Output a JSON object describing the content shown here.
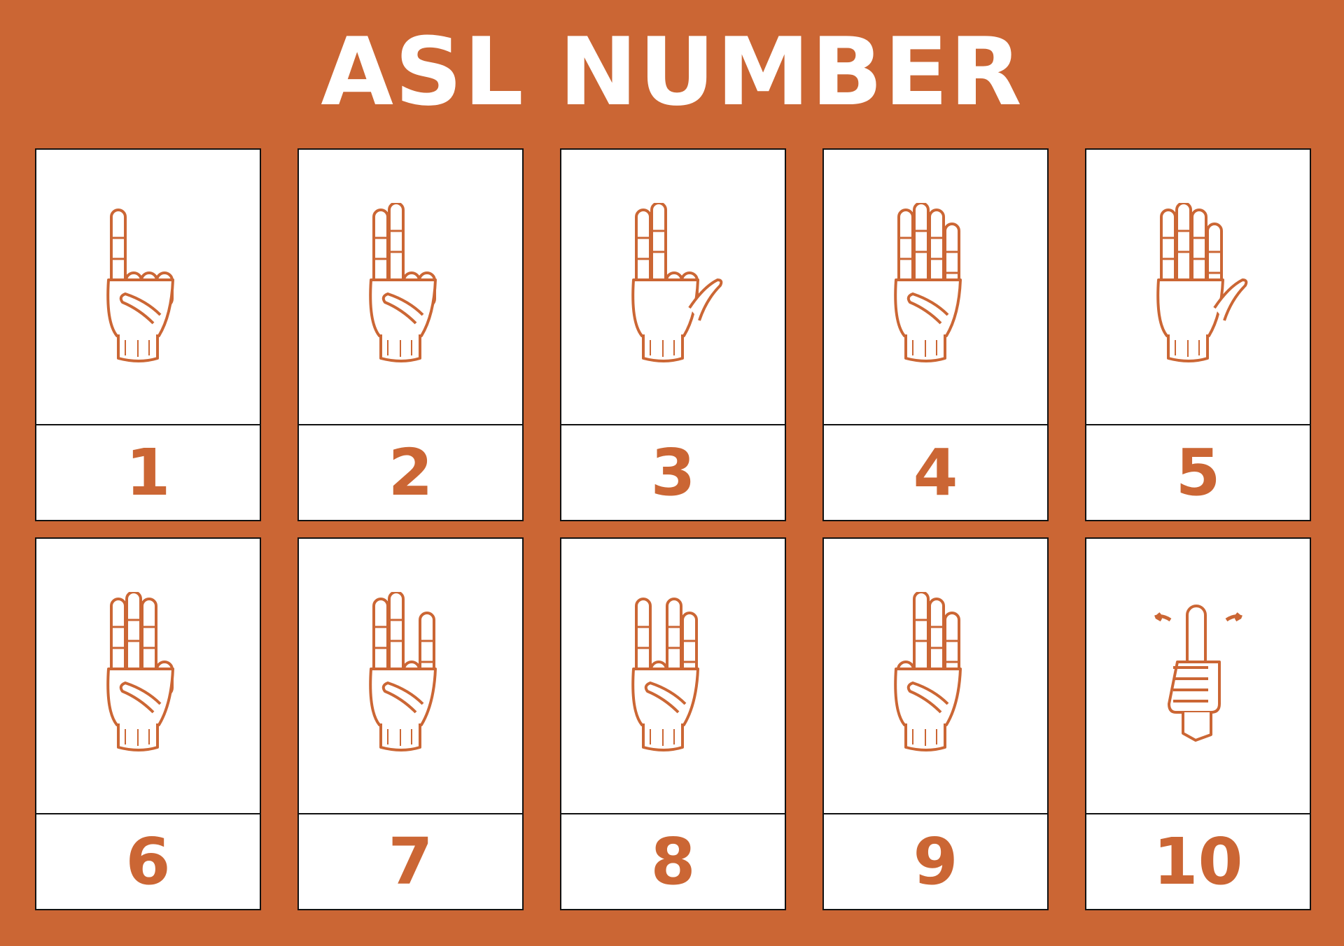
{
  "title": "ASL NUMBER",
  "accent_color": "#CB6634",
  "cards": [
    {
      "number": "1",
      "icon": "hand-sign-one-icon",
      "extended": [
        "index"
      ]
    },
    {
      "number": "2",
      "icon": "hand-sign-two-icon",
      "extended": [
        "index",
        "middle"
      ]
    },
    {
      "number": "3",
      "icon": "hand-sign-three-icon",
      "extended": [
        "thumb",
        "index",
        "middle"
      ]
    },
    {
      "number": "4",
      "icon": "hand-sign-four-icon",
      "extended": [
        "index",
        "middle",
        "ring",
        "pinky"
      ]
    },
    {
      "number": "5",
      "icon": "hand-sign-five-icon",
      "extended": [
        "thumb",
        "index",
        "middle",
        "ring",
        "pinky"
      ]
    },
    {
      "number": "6",
      "icon": "hand-sign-six-icon",
      "extended": [
        "index",
        "middle",
        "ring"
      ]
    },
    {
      "number": "7",
      "icon": "hand-sign-seven-icon",
      "extended": [
        "index",
        "middle",
        "pinky"
      ]
    },
    {
      "number": "8",
      "icon": "hand-sign-eight-icon",
      "extended": [
        "index",
        "ring",
        "pinky"
      ]
    },
    {
      "number": "9",
      "icon": "hand-sign-nine-icon",
      "extended": [
        "middle",
        "ring",
        "pinky"
      ]
    },
    {
      "number": "10",
      "icon": "hand-sign-ten-icon",
      "extended": [
        "thumb-up"
      ]
    }
  ]
}
